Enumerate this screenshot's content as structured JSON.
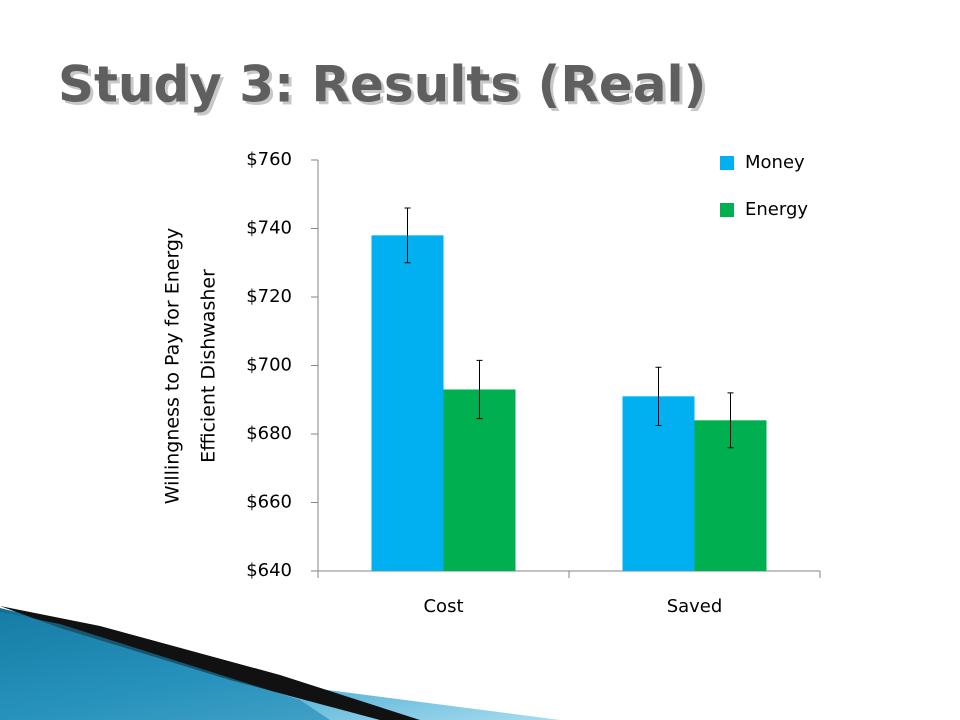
{
  "chart_data": {
    "type": "bar",
    "title": "Study 3: Results (Real)",
    "y_label_lines": [
      "Willingness to Pay for Energy",
      "Efficient Dishwasher"
    ],
    "categories": [
      "Cost",
      "Saved"
    ],
    "series": [
      {
        "name": "Money",
        "color": "#00b0f0",
        "values": [
          738,
          691
        ],
        "errors": [
          8,
          8.5
        ]
      },
      {
        "name": "Energy",
        "color": "#00b050",
        "values": [
          693,
          684
        ],
        "errors": [
          8.5,
          8
        ]
      }
    ],
    "ylim": [
      640,
      760
    ],
    "yticks": [
      {
        "value": 640,
        "label": "$640"
      },
      {
        "value": 660,
        "label": "$660"
      },
      {
        "value": 680,
        "label": "$680"
      },
      {
        "value": 700,
        "label": "$700"
      },
      {
        "value": 720,
        "label": "$720"
      },
      {
        "value": 740,
        "label": "$740"
      },
      {
        "value": 760,
        "label": "$760"
      }
    ],
    "legend": "top-right"
  }
}
